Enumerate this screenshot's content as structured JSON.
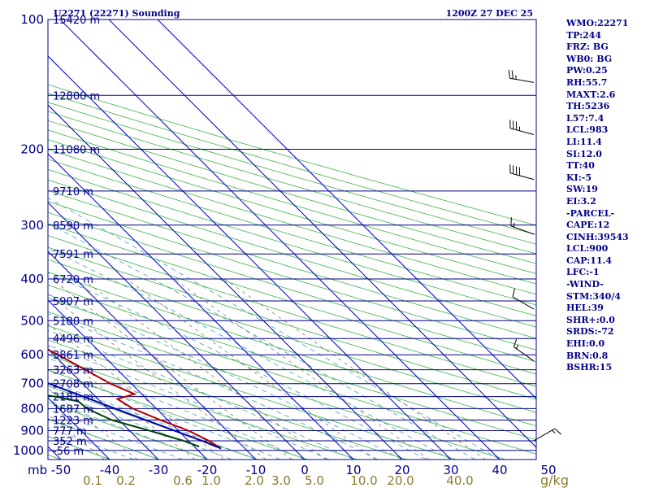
{
  "chart_data": {
    "type": "line",
    "title_left": "U2271 (22271) Sounding",
    "title_right": "1200Z 27 DEC 25",
    "pressure_axis_unit": "mb",
    "pressure_ticks": [
      100,
      200,
      300,
      400,
      500,
      600,
      700,
      800,
      900,
      1000
    ],
    "pressure_range": [
      100,
      1050
    ],
    "temp_range": [
      -50,
      50
    ],
    "temp_ticks": [
      "-50",
      "-40",
      "-30",
      "-20",
      "-10",
      "0",
      "10",
      "20",
      "30",
      "40",
      "50"
    ],
    "mixing_ratio_unit": "g/kg",
    "mixing_ratio_labels": [
      "0.1",
      "0.2",
      "0.6",
      "1.0",
      "2.0",
      "3.0",
      "5.0",
      "10.0",
      "20.0",
      "40.0"
    ],
    "height_levels": [
      {
        "p": 100,
        "label": "15420 m"
      },
      {
        "p": 150,
        "label": "12800 m"
      },
      {
        "p": 200,
        "label": "11080 m"
      },
      {
        "p": 250,
        "label": "9710 m"
      },
      {
        "p": 300,
        "label": "8590 m"
      },
      {
        "p": 350,
        "label": "7591 m"
      },
      {
        "p": 400,
        "label": "6720 m"
      },
      {
        "p": 450,
        "label": "5907 m"
      },
      {
        "p": 500,
        "label": "5180 m"
      },
      {
        "p": 550,
        "label": "4496 m"
      },
      {
        "p": 600,
        "label": "3861 m"
      },
      {
        "p": 650,
        "label": "3263 m"
      },
      {
        "p": 700,
        "label": "2708 m"
      },
      {
        "p": 750,
        "label": "2181 m"
      },
      {
        "p": 800,
        "label": "1687 m"
      },
      {
        "p": 850,
        "label": "1223 m"
      },
      {
        "p": 900,
        "label": "777 m"
      },
      {
        "p": 950,
        "label": "352 m"
      },
      {
        "p": 1000,
        "label": "-56 m"
      }
    ],
    "series": [
      {
        "name": "Temperature",
        "color": "#b00000",
        "points": [
          [
            100,
            -51.0
          ],
          [
            150,
            -49.5
          ],
          [
            180,
            -50.5
          ],
          [
            200,
            -54.8
          ],
          [
            240,
            -60.8
          ],
          [
            250,
            -60.5
          ],
          [
            300,
            -52.4
          ],
          [
            400,
            -43.6
          ],
          [
            500,
            -35.7
          ],
          [
            600,
            -29.1
          ],
          [
            700,
            -24.3
          ],
          [
            740,
            -21.5
          ],
          [
            760,
            -26.0
          ],
          [
            800,
            -24.8
          ],
          [
            850,
            -21.5
          ],
          [
            900,
            -17.9
          ],
          [
            950,
            -15.8
          ],
          [
            990,
            -14.9
          ]
        ]
      },
      {
        "name": "Dewpoint",
        "color": "#004400",
        "points": [
          [
            100,
            -56.0
          ],
          [
            150,
            -63.5
          ],
          [
            185,
            -68.0
          ],
          [
            200,
            -71.0
          ],
          [
            220,
            -77.0
          ],
          [
            250,
            -83.6
          ],
          [
            300,
            -77.5
          ],
          [
            400,
            -68.5
          ],
          [
            500,
            -58.0
          ],
          [
            550,
            -51.3
          ],
          [
            600,
            -48.7
          ],
          [
            700,
            -46.9
          ],
          [
            720,
            -48.7
          ],
          [
            750,
            -38.2
          ],
          [
            770,
            -34.5
          ],
          [
            800,
            -34.2
          ],
          [
            850,
            -31.5
          ],
          [
            900,
            -25.9
          ],
          [
            950,
            -21.0
          ],
          [
            980,
            -19.0
          ]
        ]
      },
      {
        "name": "Parcel",
        "color": "#0000b0",
        "points": [
          [
            990,
            -14.9
          ],
          [
            950,
            -17.2
          ],
          [
            900,
            -20.8
          ],
          [
            850,
            -24.5
          ],
          [
            800,
            -28.4
          ],
          [
            750,
            -32.5
          ],
          [
            700,
            -36.9
          ],
          [
            600,
            -46.5
          ],
          [
            500,
            -57.5
          ],
          [
            400,
            -70.5
          ],
          [
            300,
            -86.5
          ],
          [
            250,
            -95.5
          ],
          [
            200,
            -106.0
          ],
          [
            150,
            -119.0
          ],
          [
            116,
            -130.0
          ]
        ]
      }
    ],
    "winds": [
      {
        "p": 140,
        "dir": 280,
        "spd": 25
      },
      {
        "p": 185,
        "dir": 285,
        "spd": 35
      },
      {
        "p": 235,
        "dir": 285,
        "spd": 40
      },
      {
        "p": 315,
        "dir": 290,
        "spd": 15
      },
      {
        "p": 470,
        "dir": 300,
        "spd": 10
      },
      {
        "p": 620,
        "dir": 305,
        "spd": 15
      },
      {
        "p": 950,
        "dir": 60,
        "spd": 15
      }
    ]
  },
  "indices": [
    "WMO:22271",
    "TP:244",
    "FRZ: BG",
    "WB0: BG",
    "PW:0.25",
    "RH:55.7",
    "MAXT:2.6",
    "TH:5236",
    "L57:7.4",
    "LCL:983",
    "LI:11.4",
    "SI:12.0",
    "TT:40",
    "KI:-5",
    "SW:19",
    "EI:3.2",
    "-PARCEL-",
    "CAPE:12",
    "CINH:39543",
    "LCL:900",
    "CAP:11.4",
    "LFC:-1",
    "-WIND-",
    "STM:340/4",
    "HEL:39",
    "SHR+:0.0",
    "SRDS:-72",
    "EHI:0.0",
    "BRN:0.8",
    "BSHR:15"
  ],
  "colors": {
    "isobar": "#00008b",
    "isotherm": "#0000cd",
    "dry_adiabat": "#3cb043",
    "moist_adiabat": "#40a0c0",
    "mixing_ratio": "#8b7b5a",
    "label": "#00008b",
    "mixing_label": "#8b7b30"
  }
}
